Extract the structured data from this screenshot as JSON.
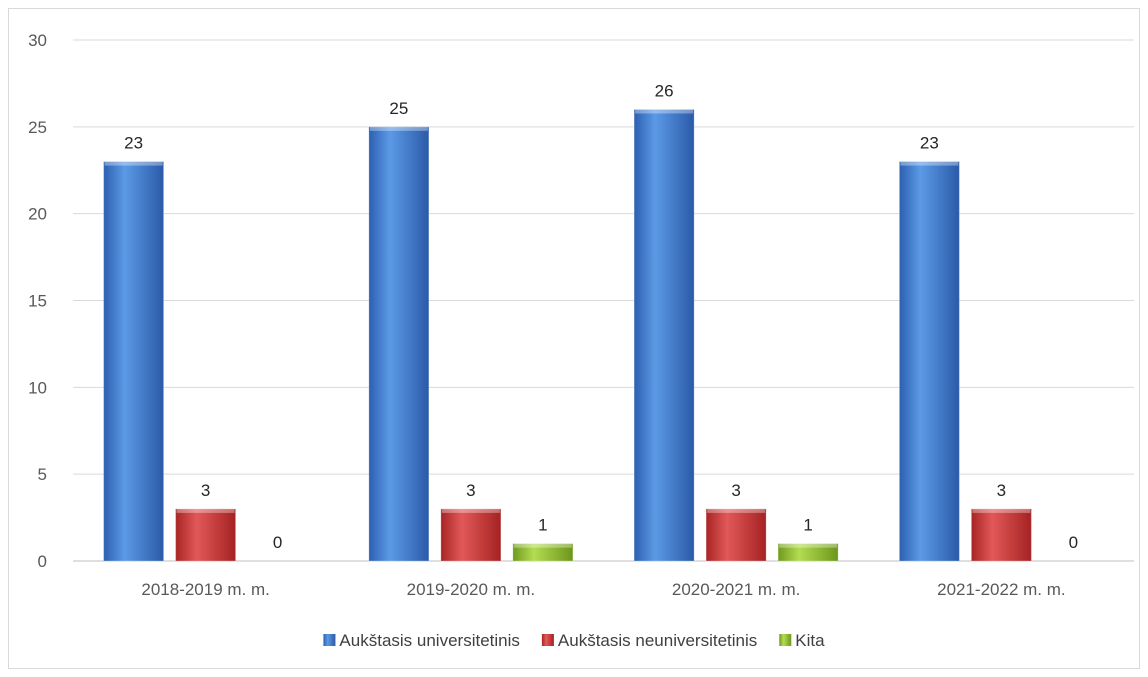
{
  "chart_data": {
    "type": "bar",
    "title": "",
    "xlabel": "",
    "ylabel": "",
    "categories": [
      "2018-2019 m. m.",
      "2019-2020 m. m.",
      "2020-2021 m. m.",
      "2021-2022 m. m."
    ],
    "series": [
      {
        "name": "Aukštasis universitetinis",
        "values": [
          23,
          25,
          26,
          23
        ],
        "color": "#3a7dd5"
      },
      {
        "name": "Aukštasis neuniversitetinis",
        "values": [
          3,
          3,
          3,
          3
        ],
        "color": "#d23a3a"
      },
      {
        "name": "Kita",
        "values": [
          0,
          1,
          1,
          0
        ],
        "color": "#8fbf2f"
      }
    ],
    "ylim": [
      0,
      30
    ],
    "yticks": [
      "0",
      "5",
      "10",
      "15",
      "20",
      "25",
      "30"
    ],
    "grid": true,
    "legend_position": "bottom",
    "data_labels": true
  }
}
